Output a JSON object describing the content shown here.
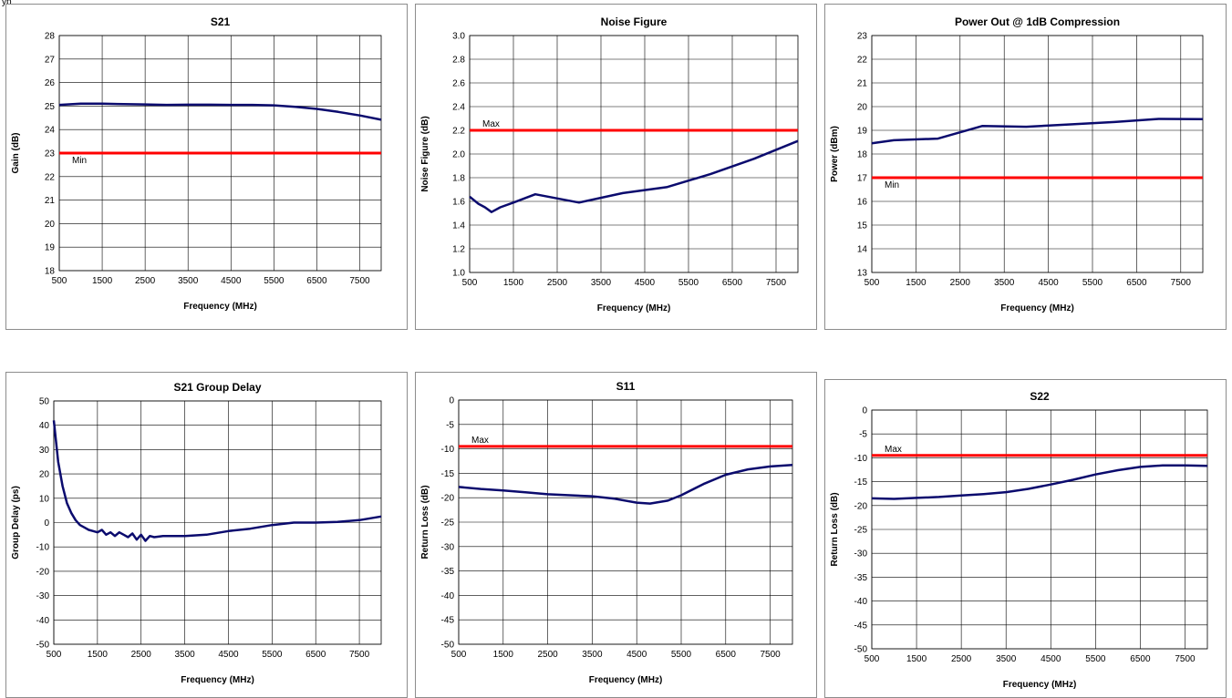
{
  "corner_text": "yp",
  "charts": [
    {
      "id": "s21",
      "type": "line",
      "title": "S21",
      "xlabel": "Frequency (MHz)",
      "ylabel": "Gain (dB)",
      "xlim": [
        500,
        8000
      ],
      "ylim": [
        18,
        28
      ],
      "xticks": [
        500,
        1500,
        2500,
        3500,
        4500,
        5500,
        6500,
        7500
      ],
      "yticks": [
        18,
        19,
        20,
        21,
        22,
        23,
        24,
        25,
        26,
        27,
        28
      ],
      "grid": true,
      "series": [
        {
          "color": "#0b0b6e",
          "x": [
            500,
            1000,
            1500,
            2000,
            2500,
            3000,
            3500,
            4000,
            4500,
            5000,
            5500,
            6000,
            6500,
            7000,
            7500,
            8000
          ],
          "y": [
            25.05,
            25.1,
            25.1,
            25.08,
            25.07,
            25.05,
            25.06,
            25.06,
            25.05,
            25.05,
            25.03,
            24.97,
            24.88,
            24.75,
            24.6,
            24.42
          ]
        }
      ],
      "limit": {
        "value": 23,
        "label": "Min",
        "color": "#ff0000"
      }
    },
    {
      "id": "noise-figure",
      "type": "line",
      "title": "Noise Figure",
      "xlabel": "Frequency (MHz)",
      "ylabel": "Noise Figure (dB)",
      "xlim": [
        500,
        8000
      ],
      "ylim": [
        1.0,
        3.0
      ],
      "xticks": [
        500,
        1500,
        2500,
        3500,
        4500,
        5500,
        6500,
        7500
      ],
      "yticks": [
        "1.0",
        "1.2",
        "1.4",
        "1.6",
        "1.8",
        "2.0",
        "2.2",
        "2.4",
        "2.6",
        "2.8",
        "3.0"
      ],
      "grid": true,
      "series": [
        {
          "color": "#0b0b6e",
          "x": [
            500,
            700,
            850,
            1000,
            1200,
            1500,
            2000,
            3000,
            4000,
            5000,
            6000,
            7000,
            8000
          ],
          "y": [
            1.64,
            1.58,
            1.55,
            1.51,
            1.55,
            1.59,
            1.66,
            1.59,
            1.67,
            1.72,
            1.83,
            1.96,
            2.11
          ]
        }
      ],
      "limit": {
        "value": 2.2,
        "label": "Max",
        "color": "#ff0000"
      }
    },
    {
      "id": "p1db",
      "type": "line",
      "title": "Power Out @ 1dB Compression",
      "xlabel": "Frequency (MHz)",
      "ylabel": "Power (dBm)",
      "xlim": [
        500,
        8000
      ],
      "ylim": [
        13,
        23
      ],
      "xticks": [
        500,
        1500,
        2500,
        3500,
        4500,
        5500,
        6500,
        7500
      ],
      "yticks": [
        13,
        14,
        15,
        16,
        17,
        18,
        19,
        20,
        21,
        22,
        23
      ],
      "grid": true,
      "series": [
        {
          "color": "#0b0b6e",
          "x": [
            500,
            1000,
            2000,
            3000,
            4000,
            5000,
            6000,
            7000,
            8000
          ],
          "y": [
            18.45,
            18.58,
            18.65,
            19.18,
            19.15,
            19.25,
            19.35,
            19.48,
            19.47
          ]
        }
      ],
      "limit": {
        "value": 17,
        "label": "Min",
        "color": "#ff0000"
      }
    },
    {
      "id": "group-delay",
      "type": "line",
      "title": "S21 Group Delay",
      "xlabel": "Frequency (MHz)",
      "ylabel": "Group Delay (ps)",
      "xlim": [
        500,
        8000
      ],
      "ylim": [
        -50,
        50
      ],
      "xticks": [
        500,
        1500,
        2500,
        3500,
        4500,
        5500,
        6500,
        7500
      ],
      "yticks": [
        -50,
        -40,
        -30,
        -20,
        -10,
        0,
        10,
        20,
        30,
        40,
        50
      ],
      "grid": true,
      "series": [
        {
          "color": "#0b0b6e",
          "x": [
            500,
            600,
            700,
            800,
            900,
            1000,
            1100,
            1200,
            1300,
            1400,
            1500,
            1600,
            1700,
            1800,
            1900,
            2000,
            2100,
            2200,
            2300,
            2400,
            2500,
            2600,
            2700,
            2800,
            3000,
            3500,
            4000,
            4500,
            5000,
            5500,
            6000,
            6500,
            7000,
            7500,
            8000
          ],
          "y": [
            42,
            25,
            15,
            8,
            4,
            1,
            -1,
            -2,
            -3,
            -3.5,
            -4,
            -3,
            -5,
            -4,
            -5.5,
            -4,
            -5,
            -6,
            -4.5,
            -7,
            -5,
            -7.5,
            -5.5,
            -6,
            -5.5,
            -5.5,
            -5,
            -3.5,
            -2.5,
            -1,
            0,
            0,
            0.3,
            1,
            2.5
          ]
        }
      ],
      "limit": null
    },
    {
      "id": "s11",
      "type": "line",
      "title": "S11",
      "xlabel": "Frequency (MHz)",
      "ylabel": "Return Loss (dB)",
      "xlim": [
        500,
        8000
      ],
      "ylim": [
        -50,
        0
      ],
      "xticks": [
        500,
        1500,
        2500,
        3500,
        4500,
        5500,
        6500,
        7500
      ],
      "yticks": [
        -50,
        -45,
        -40,
        -35,
        -30,
        -25,
        -20,
        -15,
        -10,
        -5,
        0
      ],
      "grid": true,
      "series": [
        {
          "color": "#0b0b6e",
          "x": [
            500,
            1000,
            1500,
            2000,
            2500,
            3000,
            3500,
            4000,
            4500,
            4800,
            5200,
            5500,
            6000,
            6500,
            7000,
            7500,
            8000
          ],
          "y": [
            -17.8,
            -18.2,
            -18.5,
            -18.9,
            -19.3,
            -19.5,
            -19.7,
            -20.2,
            -21.0,
            -21.2,
            -20.6,
            -19.5,
            -17.2,
            -15.3,
            -14.2,
            -13.6,
            -13.3
          ]
        }
      ],
      "limit": {
        "value": -9.5,
        "label": "Max",
        "color": "#ff0000"
      }
    },
    {
      "id": "s22",
      "type": "line",
      "title": "S22",
      "xlabel": "Frequency (MHz)",
      "ylabel": "Return Loss (dB)",
      "xlim": [
        500,
        8000
      ],
      "ylim": [
        -50,
        0
      ],
      "xticks": [
        500,
        1500,
        2500,
        3500,
        4500,
        5500,
        6500,
        7500
      ],
      "yticks": [
        -50,
        -45,
        -40,
        -35,
        -30,
        -25,
        -20,
        -15,
        -10,
        -5,
        0
      ],
      "grid": true,
      "series": [
        {
          "color": "#0b0b6e",
          "x": [
            500,
            1000,
            1500,
            2000,
            2500,
            3000,
            3500,
            4000,
            4500,
            5000,
            5500,
            6000,
            6500,
            7000,
            7500,
            8000
          ],
          "y": [
            -18.5,
            -18.6,
            -18.4,
            -18.2,
            -17.9,
            -17.6,
            -17.2,
            -16.5,
            -15.6,
            -14.6,
            -13.5,
            -12.6,
            -11.9,
            -11.6,
            -11.6,
            -11.7
          ]
        }
      ],
      "limit": {
        "value": -9.5,
        "label": "Max",
        "color": "#ff0000"
      }
    }
  ]
}
